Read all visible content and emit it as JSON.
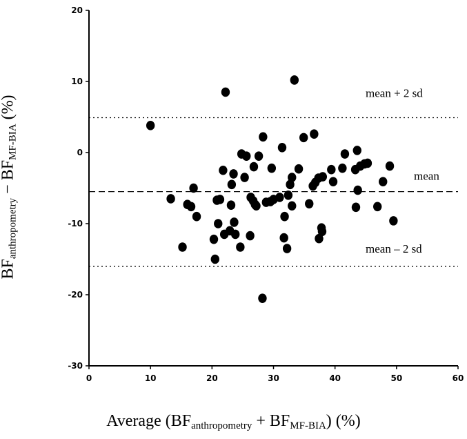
{
  "chart_data": {
    "type": "scatter",
    "title": "",
    "xlabel": {
      "main": "Average (BF",
      "sub1": "anthropometry",
      "mid": " + BF",
      "sub2": "MF-BIA",
      "end": ") (%)"
    },
    "ylabel": {
      "main": "BF",
      "sub1": "anthropometry",
      "mid": " − BF",
      "sub2": "MF-BIA",
      "end": " (%)"
    },
    "xlim": [
      0,
      60
    ],
    "ylim": [
      -30,
      20
    ],
    "x_ticks": [
      "0",
      "10",
      "20",
      "30",
      "40",
      "50",
      "60"
    ],
    "y_ticks": [
      "-30",
      "-20",
      "-10",
      "0",
      "10",
      "20"
    ],
    "grid": false,
    "reference_lines": [
      {
        "label": "mean + 2 sd",
        "y": 4.9,
        "style": "dotted"
      },
      {
        "label": "mean",
        "y": -5.5,
        "style": "dashed"
      },
      {
        "label": "mean – 2 sd",
        "y": -16.0,
        "style": "dotted"
      }
    ],
    "points": [
      {
        "x": 10.0,
        "y": 3.8
      },
      {
        "x": 13.3,
        "y": -6.5
      },
      {
        "x": 15.2,
        "y": -13.3
      },
      {
        "x": 16.0,
        "y": -7.3
      },
      {
        "x": 16.6,
        "y": -7.6
      },
      {
        "x": 17.0,
        "y": -5.0
      },
      {
        "x": 17.5,
        "y": -9.0
      },
      {
        "x": 20.3,
        "y": -12.2
      },
      {
        "x": 20.5,
        "y": -15.0
      },
      {
        "x": 20.8,
        "y": -6.7
      },
      {
        "x": 21.0,
        "y": -10.0
      },
      {
        "x": 21.3,
        "y": -6.6
      },
      {
        "x": 21.8,
        "y": -2.5
      },
      {
        "x": 22.0,
        "y": -11.5
      },
      {
        "x": 22.2,
        "y": 8.5
      },
      {
        "x": 22.9,
        "y": -11.0
      },
      {
        "x": 23.1,
        "y": -7.4
      },
      {
        "x": 23.2,
        "y": -4.5
      },
      {
        "x": 23.5,
        "y": -3.0
      },
      {
        "x": 23.6,
        "y": -9.8
      },
      {
        "x": 23.8,
        "y": -11.5
      },
      {
        "x": 24.6,
        "y": -13.3
      },
      {
        "x": 24.8,
        "y": -0.2
      },
      {
        "x": 25.3,
        "y": -3.5
      },
      {
        "x": 25.6,
        "y": -0.5
      },
      {
        "x": 26.2,
        "y": -11.7
      },
      {
        "x": 26.3,
        "y": -6.3
      },
      {
        "x": 26.7,
        "y": -6.8
      },
      {
        "x": 26.8,
        "y": -2.0
      },
      {
        "x": 27.0,
        "y": -7.3
      },
      {
        "x": 27.2,
        "y": -7.5
      },
      {
        "x": 27.6,
        "y": -0.5
      },
      {
        "x": 28.2,
        "y": -20.5
      },
      {
        "x": 28.3,
        "y": 2.2
      },
      {
        "x": 28.8,
        "y": -7.0
      },
      {
        "x": 29.5,
        "y": -6.9
      },
      {
        "x": 29.7,
        "y": -2.2
      },
      {
        "x": 30.0,
        "y": -6.6
      },
      {
        "x": 31.0,
        "y": -6.3
      },
      {
        "x": 31.4,
        "y": 0.7
      },
      {
        "x": 31.7,
        "y": -12.0
      },
      {
        "x": 31.8,
        "y": -9.0
      },
      {
        "x": 32.2,
        "y": -13.5
      },
      {
        "x": 32.4,
        "y": -6.0
      },
      {
        "x": 32.7,
        "y": -4.5
      },
      {
        "x": 33.0,
        "y": -3.5
      },
      {
        "x": 33.0,
        "y": -7.5
      },
      {
        "x": 33.4,
        "y": 10.2
      },
      {
        "x": 34.1,
        "y": -2.3
      },
      {
        "x": 34.9,
        "y": 2.1
      },
      {
        "x": 35.8,
        "y": -7.2
      },
      {
        "x": 36.4,
        "y": -4.7
      },
      {
        "x": 36.6,
        "y": 2.6
      },
      {
        "x": 36.8,
        "y": -4.2
      },
      {
        "x": 37.3,
        "y": -3.6
      },
      {
        "x": 37.4,
        "y": -12.1
      },
      {
        "x": 37.8,
        "y": -10.6
      },
      {
        "x": 37.9,
        "y": -11.1
      },
      {
        "x": 38.0,
        "y": -3.4
      },
      {
        "x": 39.4,
        "y": -2.4
      },
      {
        "x": 39.7,
        "y": -4.1
      },
      {
        "x": 41.2,
        "y": -2.2
      },
      {
        "x": 41.6,
        "y": -0.2
      },
      {
        "x": 43.3,
        "y": -2.4
      },
      {
        "x": 43.4,
        "y": -7.7
      },
      {
        "x": 43.6,
        "y": 0.3
      },
      {
        "x": 43.7,
        "y": -5.3
      },
      {
        "x": 44.1,
        "y": -1.9
      },
      {
        "x": 44.8,
        "y": -1.6
      },
      {
        "x": 45.3,
        "y": -1.5
      },
      {
        "x": 46.9,
        "y": -7.6
      },
      {
        "x": 47.8,
        "y": -4.1
      },
      {
        "x": 48.9,
        "y": -1.9
      },
      {
        "x": 49.5,
        "y": -9.6
      }
    ]
  }
}
